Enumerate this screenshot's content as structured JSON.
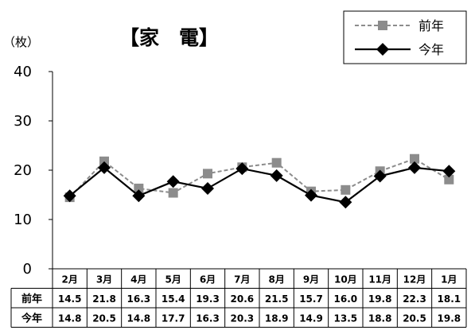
{
  "chart_data": {
    "type": "line",
    "title": "【家　電】",
    "unit_label": "（枚）",
    "categories": [
      "2月",
      "3月",
      "4月",
      "5月",
      "6月",
      "7月",
      "8月",
      "9月",
      "10月",
      "11月",
      "12月",
      "1月"
    ],
    "series": [
      {
        "name": "前年",
        "values": [
          14.5,
          21.8,
          16.3,
          15.4,
          19.3,
          20.6,
          21.5,
          15.7,
          16.0,
          19.8,
          22.3,
          18.1
        ],
        "color": "#8c8c8c",
        "line_style": "dashed",
        "marker": "square"
      },
      {
        "name": "今年",
        "values": [
          14.8,
          20.5,
          14.8,
          17.7,
          16.3,
          20.3,
          18.9,
          14.9,
          13.5,
          18.8,
          20.5,
          19.8
        ],
        "color": "#000000",
        "line_style": "solid",
        "marker": "diamond"
      }
    ],
    "yticks": [
      "0",
      "10",
      "20",
      "30",
      "40"
    ],
    "ylim": [
      0,
      40
    ],
    "grid": false,
    "legend_position": "top-right",
    "data_table": true
  }
}
